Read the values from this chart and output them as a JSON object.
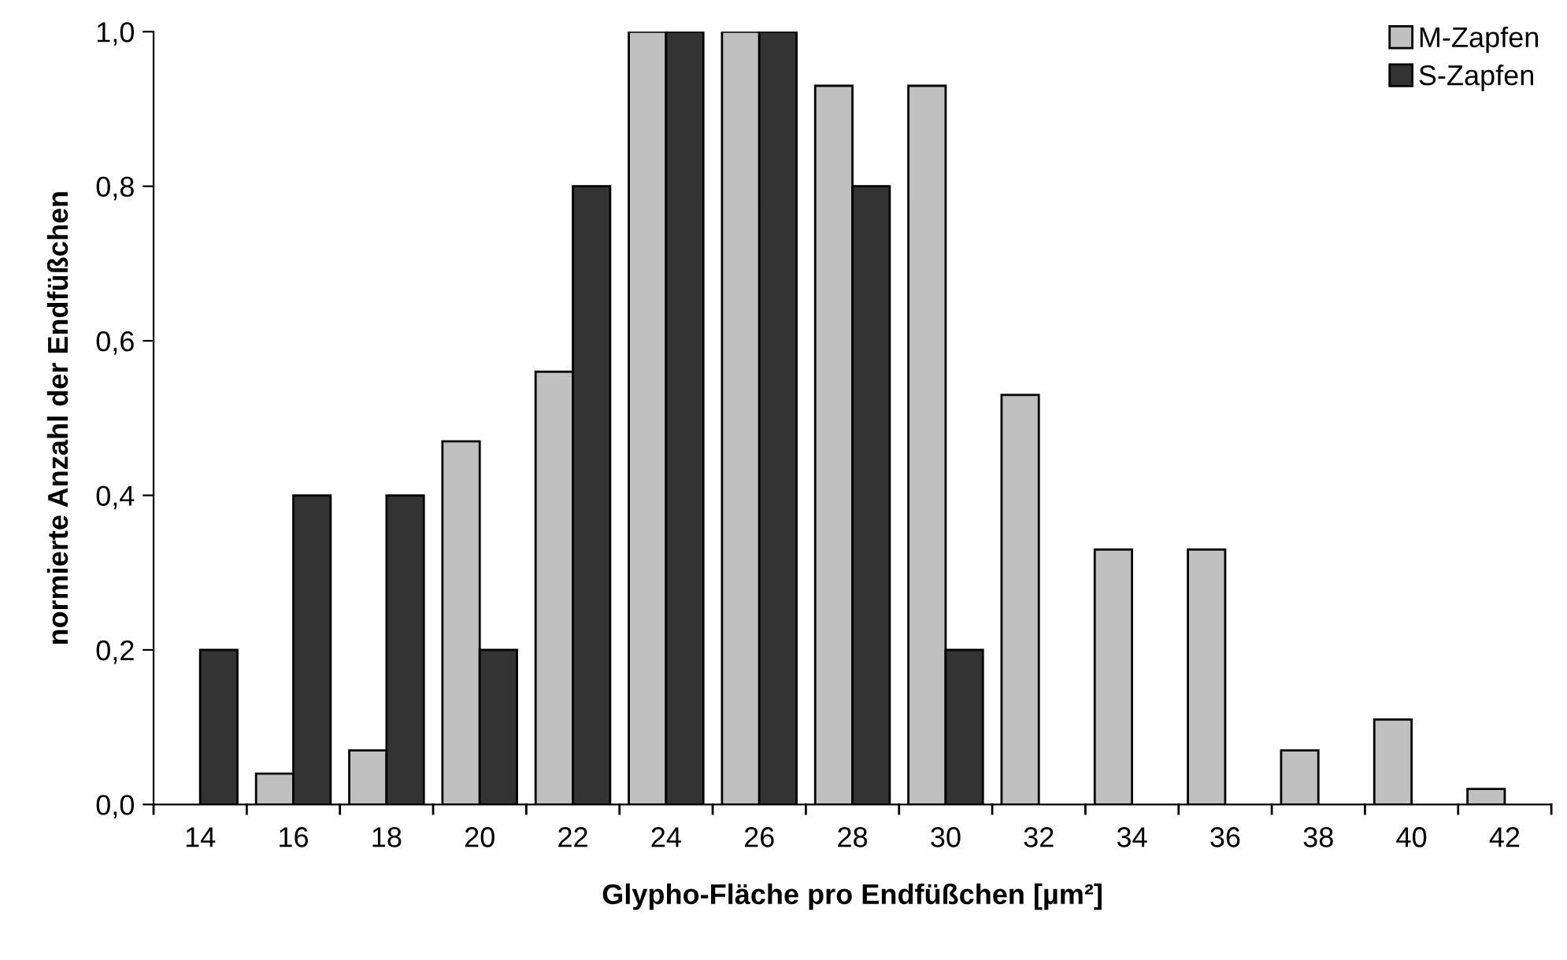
{
  "chart_data": {
    "type": "bar",
    "xlabel": "Glypho-Fläche pro Endfüßchen [µm²]",
    "ylabel": "normierte Anzahl der Endfüßchen",
    "categories": [
      "14",
      "16",
      "18",
      "20",
      "22",
      "24",
      "26",
      "28",
      "30",
      "32",
      "34",
      "36",
      "38",
      "40",
      "42"
    ],
    "series": [
      {
        "name": "M-Zapfen",
        "color": "#c0c0c0",
        "values": [
          null,
          0.04,
          0.07,
          0.47,
          0.56,
          1.0,
          1.0,
          0.93,
          0.93,
          0.53,
          0.33,
          0.33,
          0.07,
          0.11,
          0.02
        ]
      },
      {
        "name": "S-Zapfen",
        "color": "#333333",
        "values": [
          0.2,
          0.4,
          0.4,
          0.2,
          0.8,
          1.0,
          1.0,
          0.8,
          0.2,
          null,
          null,
          null,
          null,
          null,
          null
        ]
      }
    ],
    "ylim": [
      0,
      1.0
    ],
    "yticks": [
      {
        "value": 0,
        "label": "0,0"
      },
      {
        "value": 0.2,
        "label": "0,2"
      },
      {
        "value": 0.4,
        "label": "0,4"
      },
      {
        "value": 0.6,
        "label": "0,6"
      },
      {
        "value": 0.8,
        "label": "0,8"
      },
      {
        "value": 1.0,
        "label": "1,0"
      }
    ],
    "grid": false,
    "legend": "top right"
  }
}
